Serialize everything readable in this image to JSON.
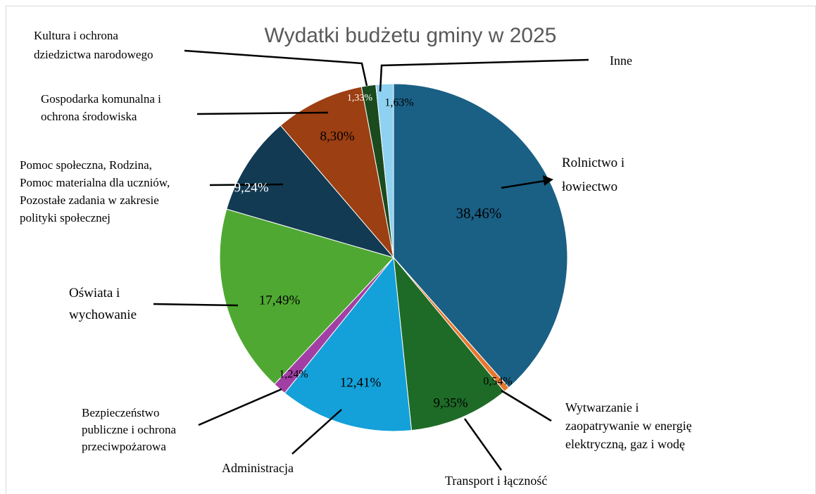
{
  "chart_data": {
    "type": "pie",
    "title": "Wydatki budżetu gminy w  2025",
    "categories": [
      "Rolnictwo i\nłowiectwo",
      "Wytwarzanie i\nzaopatrywanie w energię\nelektryczną, gaz i wodę",
      "Transport i łączność",
      "Administracja",
      "Bezpieczeństwo\npubliczne i ochrona\nprzeciwpożarowa",
      "Oświata i\nwychowanie",
      "Pomoc społeczna, Rodzina,\nPomoc materialna dla uczniów,\nPozostałe zadania w zakresie\npolityki społecznej",
      "Gospodarka komunalna i\nochrona środowiska",
      "Kultura i ochrona\ndziedzictwa narodowego",
      "Inne"
    ],
    "values": [
      38.46,
      0.54,
      9.35,
      12.41,
      1.24,
      17.49,
      9.24,
      8.3,
      1.33,
      1.63
    ],
    "value_labels": [
      "38,46%",
      "0,54%",
      "9,35%",
      "12,41%",
      "1,24%",
      "17,49%",
      "9,24%",
      "8,30%",
      "1,33%",
      "1,63%"
    ],
    "colors": [
      "#1a5f84",
      "#e8772e",
      "#1e6b27",
      "#14a0d8",
      "#a23fa5",
      "#4fa832",
      "#123a52",
      "#9c3f12",
      "#1b4a1e",
      "#8fd1f0"
    ]
  }
}
